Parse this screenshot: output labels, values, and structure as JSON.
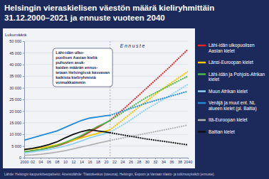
{
  "chart_data": {
    "type": "line",
    "title": "Helsingin vieraskielisen väestön määrä kieliryhmittäin\n31.12.2000–2021 ja ennuste vuoteen 2040",
    "y_label": "Lukumäärä",
    "source": "Lähde: Helsingin kaupunkitietopalvelut. Aineistolähde: Tilastokeskus (toteuma); Helsingin, Espoon ja Vantaan tilasto- ja tutkimusyksiköt (ennuste).",
    "annotations": [
      {
        "text": "Ennuste",
        "x": 2021
      },
      {
        "lines": [
          "Lähi-idän ulko-",
          "puolisen Aasian kieliä",
          "puhuvien asuk-",
          "kaiden määrän ennus-",
          "tetaan Helsingissä kasvavan",
          "kaikista kieliryhmistä",
          "voimakkaimmin"
        ]
      }
    ],
    "x": [
      2000,
      2002,
      2004,
      2006,
      2008,
      2010,
      2012,
      2014,
      2016,
      2018,
      2020,
      2021,
      2025,
      2030,
      2035,
      2040
    ],
    "series": [
      {
        "name": "Lähi-idän ulkopuolisen Aasian kielet",
        "color": "#e3262b",
        "values": [
          2500,
          3000,
          3500,
          4200,
          5000,
          6200,
          7500,
          9000,
          11000,
          13000,
          15000,
          16000,
          22000,
          30000,
          38000,
          46500
        ]
      },
      {
        "name": "Länsi-Euroopan kielet",
        "color": "#f2c500",
        "values": [
          3500,
          3800,
          4200,
          4800,
          5500,
          6500,
          7500,
          8500,
          9500,
          10500,
          11500,
          12000,
          17500,
          24500,
          31000,
          37000
        ]
      },
      {
        "name": "Lähi-idän ja Pohjois-Afrikan kielet",
        "color": "#4cb848",
        "values": [
          2500,
          3000,
          3500,
          4200,
          5200,
          6500,
          8000,
          9500,
          11500,
          13500,
          15000,
          16000,
          20500,
          26000,
          30500,
          35000
        ]
      },
      {
        "name": "Muun Afrikan kielet",
        "color": "#8fd3f0",
        "values": [
          2000,
          2500,
          3000,
          3500,
          4200,
          5000,
          6000,
          7200,
          8500,
          9500,
          10500,
          11000,
          15000,
          21000,
          26000,
          31500
        ]
      },
      {
        "name": "Venäjä ja muut ent. NL alueen kielet (pl. Baltia)",
        "color": "#1f8ad6",
        "values": [
          7500,
          8500,
          9500,
          10500,
          11500,
          13000,
          14500,
          16000,
          17000,
          17500,
          18000,
          18200,
          20500,
          23500,
          26000,
          28500
        ]
      },
      {
        "name": "Itä-Euroopan kielet",
        "color": "#b3b3b3",
        "values": [
          1000,
          1200,
          1500,
          1900,
          2400,
          3000,
          3800,
          4600,
          5400,
          6200,
          7000,
          7400,
          8800,
          10500,
          12200,
          14000
        ]
      },
      {
        "name": "Baltian kielet",
        "color": "#111111",
        "values": [
          3500,
          4000,
          4700,
          5600,
          6800,
          8500,
          10000,
          11200,
          12000,
          11500,
          11000,
          10700,
          9500,
          8000,
          6800,
          5500
        ]
      }
    ],
    "xlim": [
      2000,
      2040
    ],
    "xticks": [
      2000,
      {
        "value": 2002,
        "label": "02"
      },
      {
        "value": 2004,
        "label": "04"
      },
      {
        "value": 2006,
        "label": "06"
      },
      {
        "value": 2008,
        "label": "08"
      },
      {
        "value": 2010,
        "label": "10"
      },
      {
        "value": 2012,
        "label": "12"
      },
      {
        "value": 2014,
        "label": "14"
      },
      {
        "value": 2016,
        "label": "16"
      },
      {
        "value": 2018,
        "label": "18"
      },
      {
        "value": 2020,
        "label": "20"
      },
      {
        "value": 2022,
        "label": "22"
      },
      {
        "value": 2024,
        "label": "24"
      },
      {
        "value": 2026,
        "label": "26"
      },
      {
        "value": 2028,
        "label": "28"
      },
      {
        "value": 2030,
        "label": "30"
      },
      {
        "value": 2032,
        "label": "32"
      },
      {
        "value": 2034,
        "label": "34"
      },
      {
        "value": 2036,
        "label": "36"
      },
      {
        "value": 2038,
        "label": "38"
      },
      2040
    ],
    "ylim": [
      0,
      50000
    ],
    "yticks": [
      0,
      {
        "value": 5000,
        "label": "5 000"
      },
      {
        "value": 10000,
        "label": "10 000"
      },
      {
        "value": 15000,
        "label": "15 000"
      },
      {
        "value": 20000,
        "label": "20 000"
      },
      {
        "value": 25000,
        "label": "25 000"
      },
      {
        "value": 30000,
        "label": "30 000"
      },
      {
        "value": 35000,
        "label": "35 000"
      },
      {
        "value": 40000,
        "label": "40 000"
      },
      {
        "value": 45000,
        "label": "45 000"
      },
      {
        "value": 50000,
        "label": "50 000"
      }
    ],
    "grid": true,
    "legend": "right"
  }
}
